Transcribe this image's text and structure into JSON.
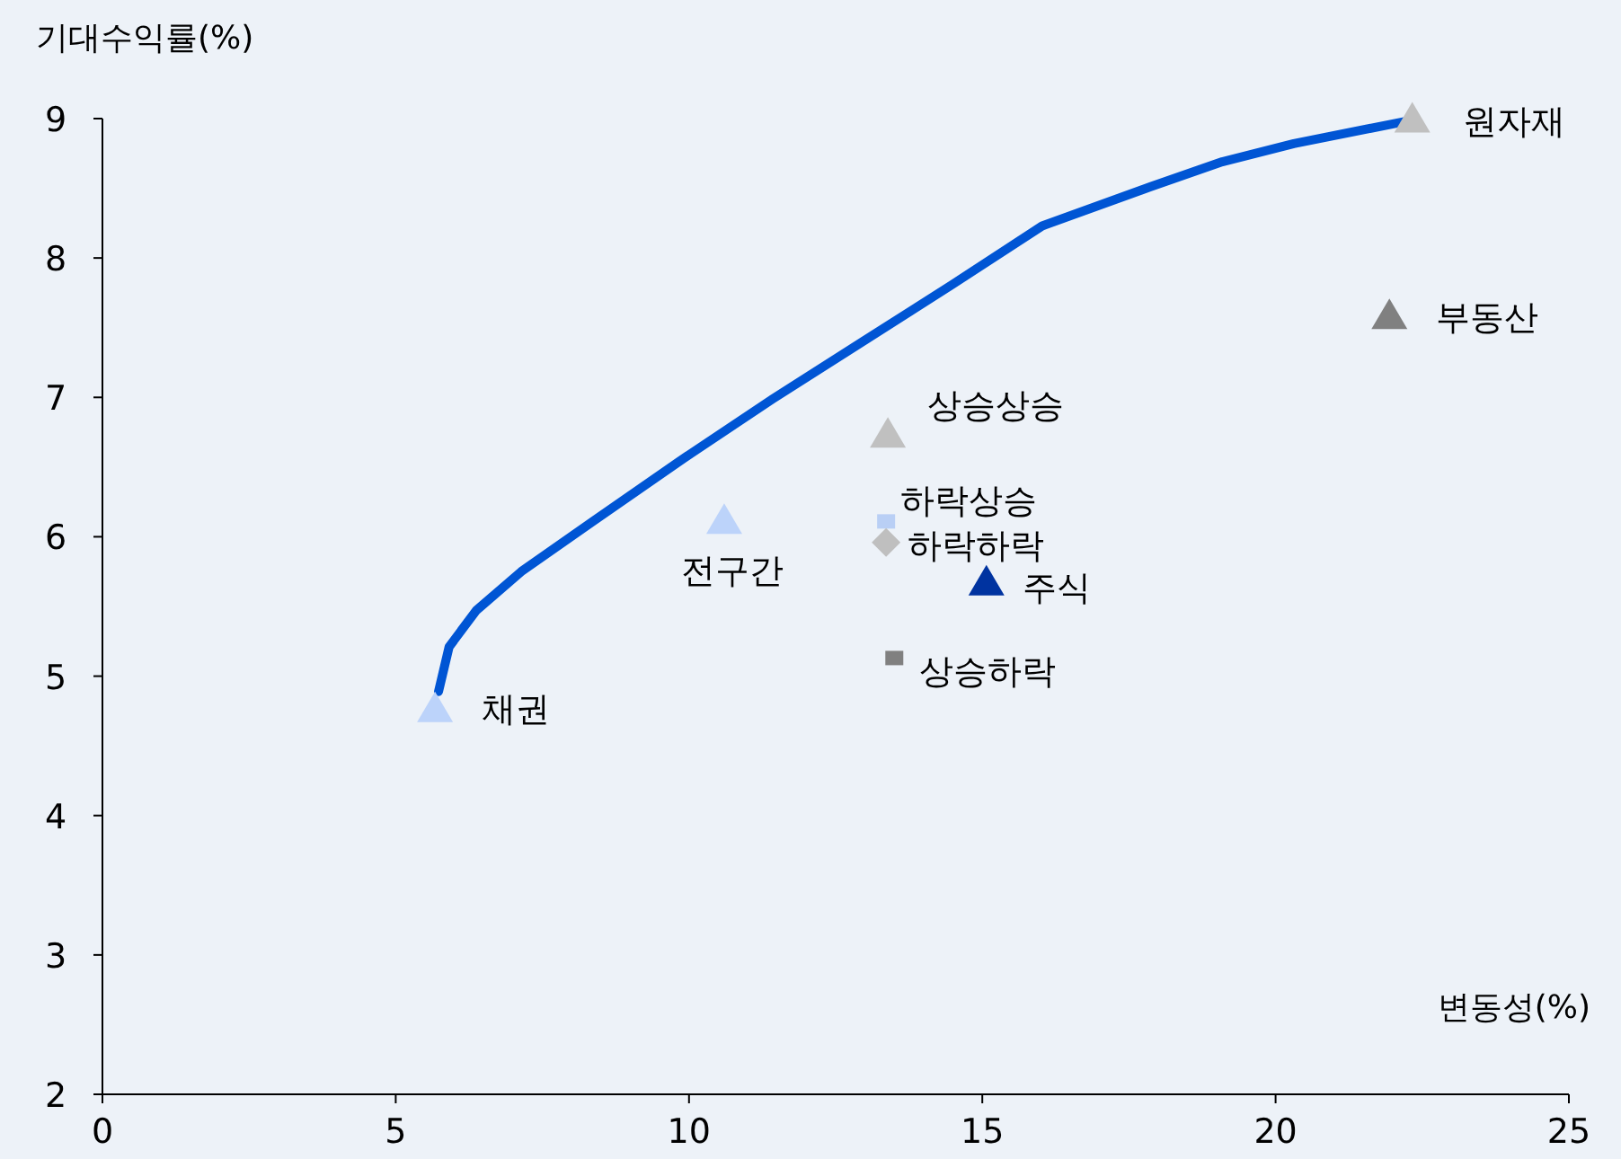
{
  "chart_data": {
    "type": "scatter",
    "xlabel": "변동성(%)",
    "ylabel": "기대수익률(%)",
    "xlim": [
      0,
      25
    ],
    "xticks": [
      0,
      5,
      10,
      15,
      20,
      25
    ],
    "ylim": [
      2,
      9
    ],
    "yticks": [
      2,
      3,
      4,
      5,
      6,
      7,
      8,
      9
    ],
    "grid": false,
    "legend": false,
    "series": [
      {
        "type": "line",
        "color": "#0055d4",
        "marker": "none",
        "line_style": "solid",
        "x": [
          5.73,
          5.91,
          6.37,
          7.14,
          8.36,
          9.9,
          11.43,
          12.96,
          14.49,
          16.02,
          17.86,
          19.09,
          20.31,
          22.33
        ],
        "values": [
          4.89,
          5.21,
          5.47,
          5.75,
          6.11,
          6.56,
          6.99,
          7.4,
          7.81,
          8.23,
          8.51,
          8.69,
          8.82,
          8.99
        ]
      },
      {
        "name": "채권",
        "color": "#bcd3fa",
        "marker": "triangle",
        "x": [
          5.67
        ],
        "values": [
          4.76
        ]
      },
      {
        "name": "전구간",
        "color": "#bcd3fa",
        "marker": "triangle",
        "x": [
          10.6
        ],
        "values": [
          6.11
        ]
      },
      {
        "name": "상승상승",
        "color": "#c0c0c0",
        "marker": "triangle",
        "x": [
          13.39
        ],
        "values": [
          6.73
        ]
      },
      {
        "name": "하락상승",
        "color": "#b9cff5",
        "marker": "square",
        "x": [
          13.36
        ],
        "values": [
          6.11
        ]
      },
      {
        "name": "하락하락",
        "color": "#bfbfbf",
        "marker": "diamond",
        "x": [
          13.36
        ],
        "values": [
          5.96
        ]
      },
      {
        "name": "주식",
        "color": "#0033a0",
        "marker": "triangle",
        "x": [
          15.07
        ],
        "values": [
          5.67
        ]
      },
      {
        "name": "상승하락",
        "color": "#808080",
        "marker": "square",
        "x": [
          13.5
        ],
        "values": [
          5.13
        ]
      },
      {
        "name": "원자재",
        "color": "#c0c0c0",
        "marker": "triangle",
        "x": [
          22.33
        ],
        "values": [
          8.99
        ]
      },
      {
        "name": "부동산",
        "color": "#808080",
        "marker": "triangle",
        "x": [
          21.94
        ],
        "values": [
          7.58
        ]
      }
    ]
  }
}
